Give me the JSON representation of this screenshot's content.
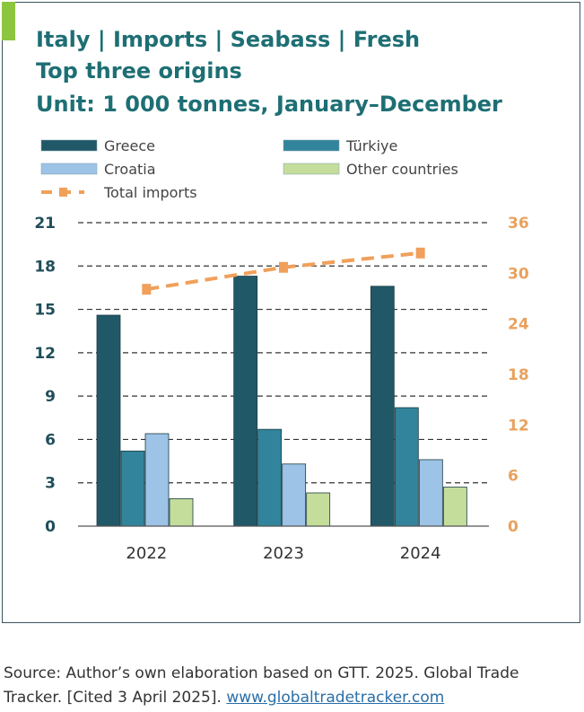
{
  "header": {
    "title_line1": "Italy | Imports | Seabass | Fresh",
    "title_line2": "Top three origins",
    "title_line3": "Unit: 1 000 tonnes, January–December"
  },
  "source": {
    "text": "Source: Author’s own elaboration based on GTT. 2025. Global Trade Tracker. [Cited 3 April 2025]. ",
    "link_text": "www.globaltradetracker.com"
  },
  "colors": {
    "greece": "#215867",
    "turkiye": "#31849b",
    "croatia": "#9dc3e6",
    "other": "#c4dd9b",
    "total": "#f0a05a",
    "axis_left": "#1f4e5a",
    "axis_right": "#e8a15e"
  },
  "chart_data": {
    "type": "bar",
    "categories": [
      "2022",
      "2023",
      "2024"
    ],
    "series": [
      {
        "name": "Greece",
        "axis": "left",
        "values": [
          14.6,
          17.3,
          16.6
        ]
      },
      {
        "name": "Türkiye",
        "axis": "left",
        "values": [
          5.2,
          6.7,
          8.2
        ]
      },
      {
        "name": "Croatia",
        "axis": "left",
        "values": [
          6.4,
          4.3,
          4.6
        ]
      },
      {
        "name": "Other countries",
        "axis": "left",
        "values": [
          1.9,
          2.3,
          2.7
        ]
      },
      {
        "name": "Total imports",
        "type": "line",
        "axis": "right",
        "values": [
          28.1,
          30.7,
          32.4
        ]
      }
    ],
    "y_left": {
      "ticks": [
        "0",
        "3",
        "6",
        "9",
        "12",
        "15",
        "18",
        "21"
      ],
      "range": [
        0,
        21
      ]
    },
    "y_right": {
      "ticks": [
        "0",
        "6",
        "12",
        "18",
        "24",
        "30",
        "36"
      ],
      "range": [
        0,
        36
      ]
    },
    "legend_position": "top",
    "grid": true
  }
}
